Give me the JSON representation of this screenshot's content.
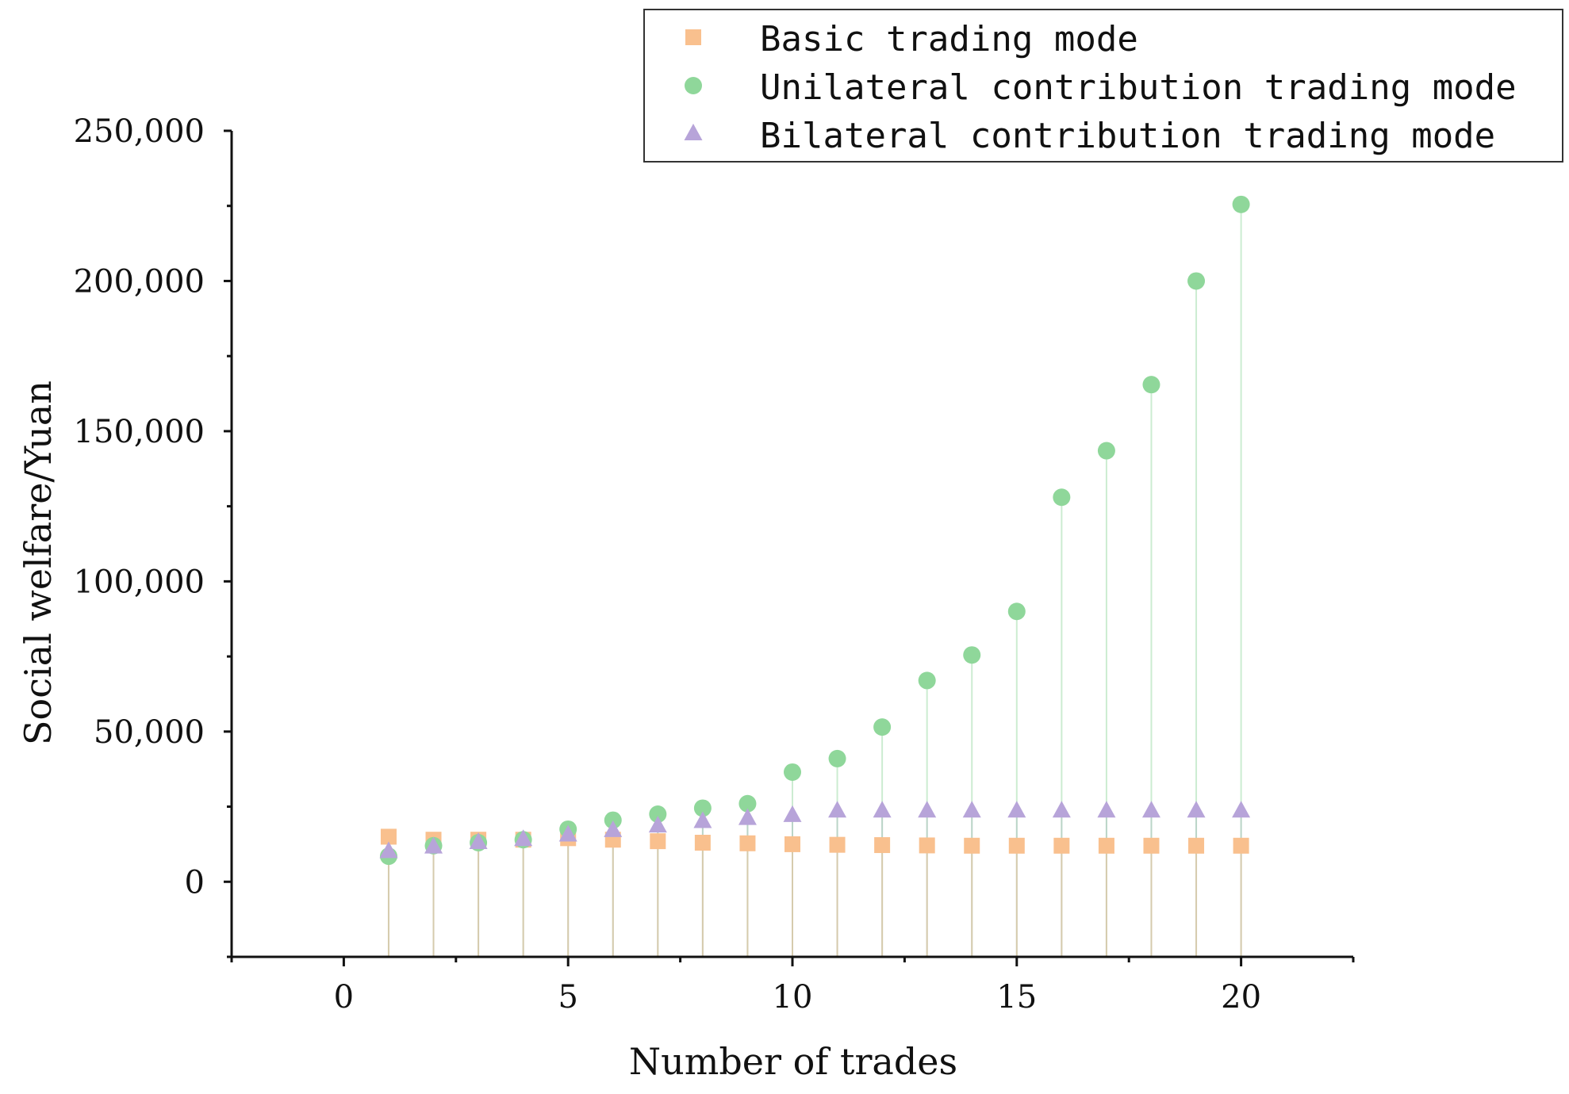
{
  "chart_data": {
    "type": "scatter",
    "xlabel": "Number of trades",
    "ylabel": "Social welfare/Yuan",
    "xlim": [
      -2.5,
      22.5
    ],
    "ylim": [
      -25000,
      250000
    ],
    "x_ticks": [
      "0",
      "5",
      "10",
      "15",
      "20"
    ],
    "y_ticks": [
      "0",
      "50,000",
      "100,000",
      "150,000",
      "200,000",
      "250,000"
    ],
    "grid": false,
    "legend_position": "top-right",
    "x": [
      1,
      2,
      3,
      4,
      5,
      6,
      7,
      8,
      9,
      10,
      11,
      12,
      13,
      14,
      15,
      16,
      17,
      18,
      19,
      20
    ],
    "series": [
      {
        "name": "Basic trading mode",
        "marker": "square",
        "color": "#F9C08E",
        "values": [
          15000,
          14000,
          14000,
          14000,
          14500,
          14000,
          13500,
          13000,
          12800,
          12500,
          12300,
          12200,
          12100,
          12000,
          12000,
          12000,
          12000,
          12000,
          12000,
          12000
        ]
      },
      {
        "name": "Unilateral contribution trading mode",
        "marker": "circle",
        "color": "#8FD79A",
        "values": [
          8500,
          12000,
          13000,
          14000,
          17500,
          20500,
          22500,
          24500,
          26000,
          36500,
          41000,
          51500,
          67000,
          75500,
          90000,
          128000,
          143500,
          165500,
          200000,
          225500
        ]
      },
      {
        "name": "Bilateral contribution trading mode",
        "marker": "triangle",
        "color": "#B7A4D9",
        "values": [
          10000,
          11500,
          13000,
          14000,
          15500,
          17000,
          18500,
          20000,
          21000,
          22000,
          23500,
          23500,
          23500,
          23500,
          23500,
          23500,
          23500,
          23500,
          23500,
          23500
        ]
      }
    ]
  }
}
